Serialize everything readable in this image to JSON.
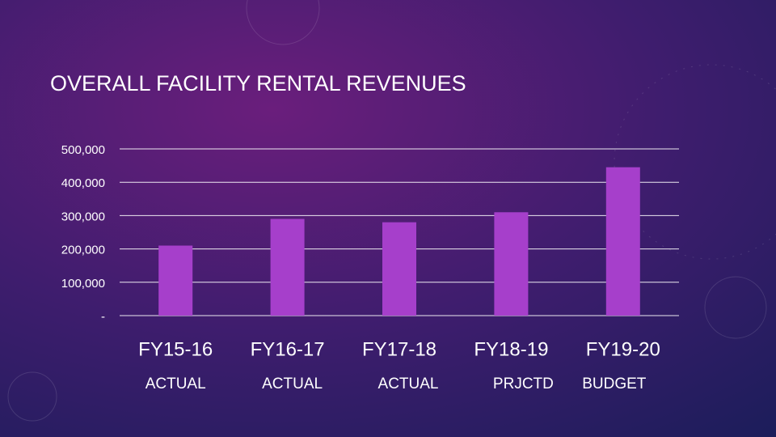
{
  "chart_data": {
    "type": "bar",
    "title": "OVERALL FACILITY RENTAL REVENUES",
    "categories": [
      "FY15-16",
      "FY16-17",
      "FY17-18",
      "FY18-19",
      "FY19-20"
    ],
    "category_sublabels": [
      "ACTUAL",
      "ACTUAL",
      "ACTUAL",
      "PRJCTD",
      "BUDGET"
    ],
    "values": [
      210000,
      290000,
      280000,
      310000,
      445000
    ],
    "color": "#a63fcb",
    "ylim": [
      0,
      500000
    ],
    "yticks": [
      {
        "value": 0,
        "label": "-"
      },
      {
        "value": 100000,
        "label": "100,000"
      },
      {
        "value": 200000,
        "label": "200,000"
      },
      {
        "value": 300000,
        "label": "300,000"
      },
      {
        "value": 400000,
        "label": "400,000"
      },
      {
        "value": 500000,
        "label": "500,000"
      }
    ],
    "grid": true
  }
}
